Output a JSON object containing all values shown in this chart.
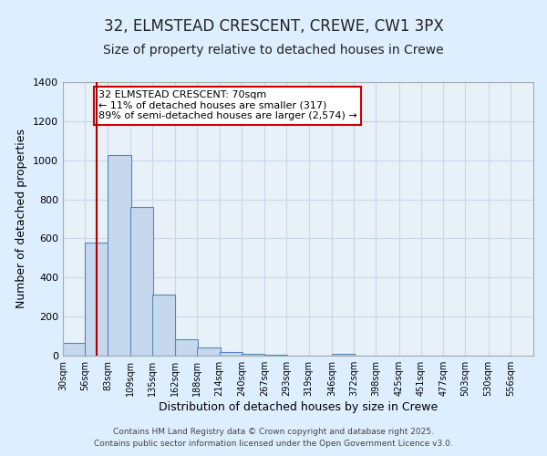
{
  "title": "32, ELMSTEAD CRESCENT, CREWE, CW1 3PX",
  "subtitle": "Size of property relative to detached houses in Crewe",
  "xlabel": "Distribution of detached houses by size in Crewe",
  "ylabel": "Number of detached properties",
  "bar_left_edges": [
    30,
    56,
    83,
    109,
    135,
    162,
    188,
    214,
    240,
    267,
    293,
    319,
    346,
    372,
    398,
    425,
    451,
    477,
    503,
    530
  ],
  "bar_heights": [
    65,
    580,
    1025,
    760,
    315,
    85,
    40,
    20,
    10,
    5,
    2,
    0,
    10,
    0,
    0,
    0,
    0,
    0,
    0,
    0
  ],
  "bin_width": 27,
  "bar_color": "#c5d8ee",
  "bar_edgecolor": "#5588bb",
  "vline_x": 70,
  "vline_color": "#aa0000",
  "ylim": [
    0,
    1400
  ],
  "xlim": [
    30,
    583
  ],
  "tick_labels": [
    "30sqm",
    "56sqm",
    "83sqm",
    "109sqm",
    "135sqm",
    "162sqm",
    "188sqm",
    "214sqm",
    "240sqm",
    "267sqm",
    "293sqm",
    "319sqm",
    "346sqm",
    "372sqm",
    "398sqm",
    "425sqm",
    "451sqm",
    "477sqm",
    "503sqm",
    "530sqm",
    "556sqm"
  ],
  "tick_positions": [
    30,
    56,
    83,
    109,
    135,
    162,
    188,
    214,
    240,
    267,
    293,
    319,
    346,
    372,
    398,
    425,
    451,
    477,
    503,
    530,
    556
  ],
  "annotation_text": "32 ELMSTEAD CRESCENT: 70sqm\n← 11% of detached houses are smaller (317)\n89% of semi-detached houses are larger (2,574) →",
  "annotation_box_facecolor": "#ffffff",
  "annotation_box_edgecolor": "#cc0000",
  "footer_text1": "Contains HM Land Registry data © Crown copyright and database right 2025.",
  "footer_text2": "Contains public sector information licensed under the Open Government Licence v3.0.",
  "background_color": "#ddeeff",
  "plot_background_color": "#e8f0f8",
  "grid_color": "#c8d8e8",
  "title_fontsize": 12,
  "subtitle_fontsize": 10,
  "annotation_fontsize": 8,
  "footer_fontsize": 6.5,
  "yticks": [
    0,
    200,
    400,
    600,
    800,
    1000,
    1200,
    1400
  ]
}
